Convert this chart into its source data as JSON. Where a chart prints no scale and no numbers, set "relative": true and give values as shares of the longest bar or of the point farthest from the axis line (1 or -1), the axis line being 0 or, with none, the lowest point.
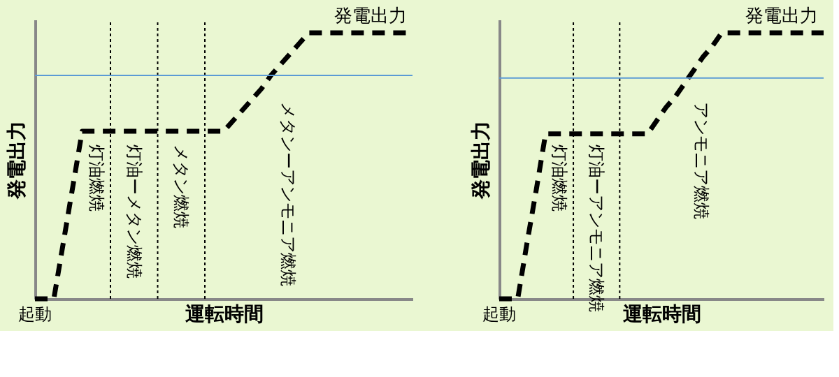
{
  "chart_data": [
    {
      "type": "line",
      "relative": true,
      "xlabel": "運転時間",
      "ylabel": "発電出力",
      "categories": [
        null,
        null,
        null,
        null,
        null,
        null,
        null,
        null,
        null,
        null,
        null,
        null,
        null,
        null,
        null,
        null,
        null,
        null,
        null,
        null,
        null,
        null,
        null,
        null,
        null,
        null,
        null,
        null,
        null,
        null,
        null,
        null,
        null,
        null,
        null,
        null,
        null,
        null,
        null,
        null,
        null
      ],
      "series": [
        {
          "name": "発電出力",
          "color": "#000000",
          "line_style": "dashed",
          "values": [
            0,
            0,
            0,
            0.21,
            0.42,
            0.63,
            0.63,
            0.63,
            0.63,
            0.63,
            0.63,
            0.63,
            0.63,
            0.63,
            0.63,
            0.63,
            0.63,
            0.63,
            0.63,
            0.63,
            0.63,
            0.67,
            0.71,
            0.75,
            0.79,
            0.84,
            0.88,
            0.92,
            0.96,
            1,
            1,
            1,
            1,
            1,
            1,
            1,
            1,
            1,
            1,
            1,
            1
          ]
        }
      ],
      "ref_lines": [
        {
          "axis": "y",
          "value": 0.84,
          "color": "#5b9bd5",
          "line_style": "solid"
        }
      ],
      "annotations": [
        "灯油燃焼",
        "灯油ーメタン燃焼",
        "メタン燃焼",
        "メタンーアンモニア燃焼",
        "起動"
      ],
      "grid": "x"
    },
    {
      "type": "line",
      "relative": true,
      "xlabel": "運転時間",
      "ylabel": "発電出力",
      "categories": [
        null,
        null,
        null,
        null,
        null,
        null,
        null,
        null,
        null,
        null,
        null,
        null,
        null,
        null,
        null,
        null,
        null,
        null,
        null,
        null,
        null,
        null,
        null,
        null,
        null,
        null,
        null,
        null,
        null,
        null,
        null,
        null,
        null,
        null,
        null,
        null
      ],
      "series": [
        {
          "name": "発電出力",
          "color": "#000000",
          "line_style": "dashed",
          "values": [
            0,
            0,
            0,
            0.21,
            0.41,
            0.62,
            0.62,
            0.62,
            0.62,
            0.62,
            0.62,
            0.62,
            0.62,
            0.62,
            0.62,
            0.62,
            0.62,
            0.67,
            0.72,
            0.76,
            0.81,
            0.86,
            0.91,
            0.95,
            1,
            1,
            1,
            1,
            1,
            1,
            1,
            1,
            1,
            1,
            1,
            1
          ]
        }
      ],
      "ref_lines": [
        {
          "axis": "y",
          "value": 0.83,
          "color": "#5b9bd5",
          "line_style": "solid"
        }
      ],
      "annotations": [
        "灯油燃焼",
        "灯油ーアンモニア燃焼",
        "アンモニア燃焼",
        "起動"
      ]
    }
  ]
}
